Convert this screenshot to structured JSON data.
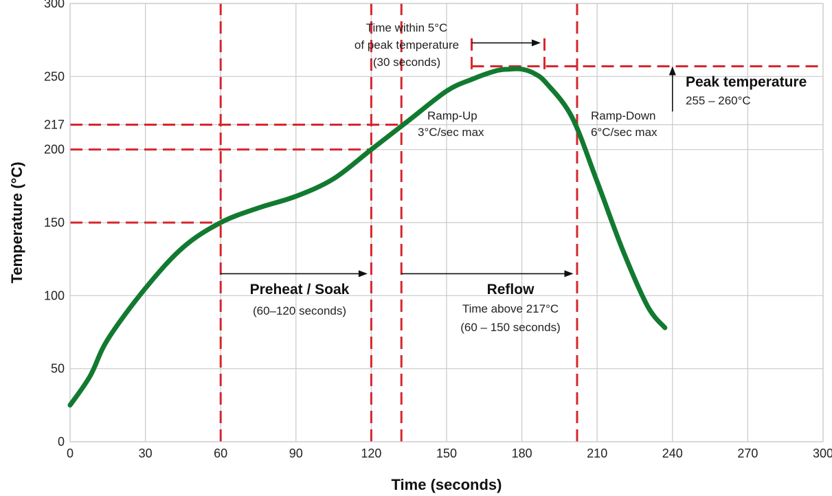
{
  "chart_data": {
    "type": "line",
    "title": "",
    "xlabel": "Time (seconds)",
    "ylabel": "Temperature (°C)",
    "xlim": [
      0,
      300
    ],
    "ylim": [
      0,
      300
    ],
    "x_ticks": [
      0,
      30,
      60,
      90,
      120,
      150,
      180,
      210,
      240,
      270,
      300
    ],
    "y_ticks": [
      0,
      50,
      100,
      150,
      200,
      217,
      250,
      300
    ],
    "grid": true,
    "series": [
      {
        "color": "#127a30",
        "x": [
          0,
          8,
          15,
          30,
          45,
          60,
          75,
          90,
          105,
          120,
          135,
          150,
          160,
          170,
          175,
          180,
          185,
          190,
          200,
          210,
          220,
          230,
          237
        ],
        "y": [
          25,
          45,
          70,
          105,
          133,
          150,
          160,
          168,
          180,
          200,
          220,
          240,
          248,
          254,
          255,
          255,
          252,
          245,
          222,
          178,
          132,
          93,
          78
        ]
      }
    ],
    "reference_lines": [
      {
        "axis": "y",
        "value": 150,
        "x_end": 60
      },
      {
        "axis": "y",
        "value": 200,
        "x_end": 120
      },
      {
        "axis": "y",
        "value": 217,
        "x_end": 132
      },
      {
        "axis": "y",
        "value": 257,
        "x_start": 160,
        "x_end": 300
      },
      {
        "axis": "x",
        "value": 60
      },
      {
        "axis": "x",
        "value": 120
      },
      {
        "axis": "x",
        "value": 132
      },
      {
        "axis": "x",
        "value": 202
      },
      {
        "axis": "x",
        "value": 160,
        "y_start": 255,
        "y_end": 280
      },
      {
        "axis": "x",
        "value": 189,
        "y_start": 255,
        "y_end": 280
      }
    ],
    "annotations": {
      "peak_window": [
        "Time within 5°C",
        "of peak temperature",
        "(30 seconds)"
      ],
      "peak_title": "Peak temperature",
      "peak_range": "255 – 260°C",
      "ramp_up": [
        "Ramp-Up",
        "3°C/sec max"
      ],
      "ramp_down": [
        "Ramp-Down",
        "6°C/sec max"
      ],
      "preheat_title": "Preheat / Soak",
      "preheat_range": "(60–120 seconds)",
      "reflow_title": "Reflow",
      "reflow_desc": [
        "Time above 217°C",
        "(60 – 150 seconds)"
      ]
    }
  }
}
